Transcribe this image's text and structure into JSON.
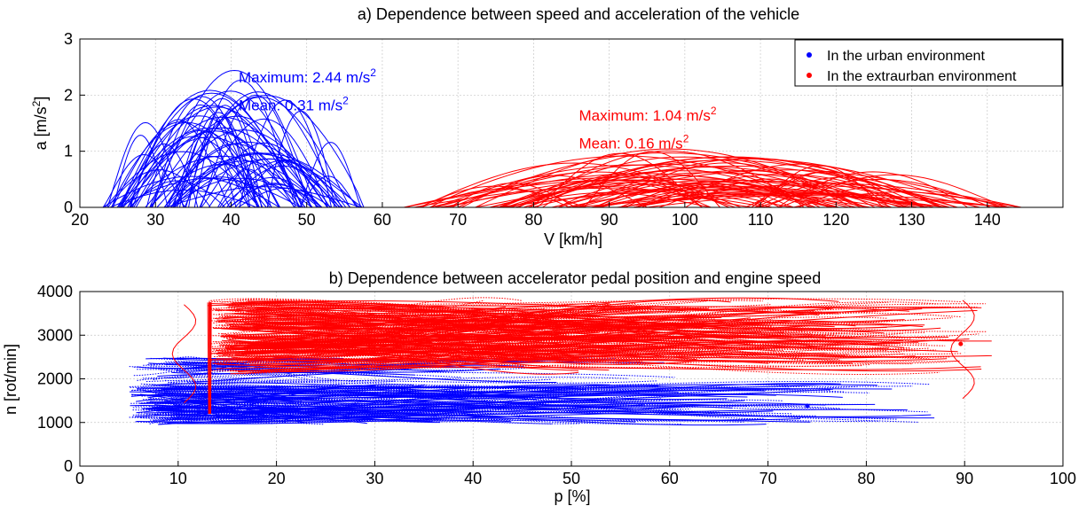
{
  "colors": {
    "urban": "#0000ff",
    "extraurban": "#ff0000",
    "axis": "#000000",
    "grid": "#c8c8c8"
  },
  "chart_data": [
    {
      "type": "line",
      "title": "a) Dependence between speed and acceleration of the vehicle",
      "xlabel": "V [km/h]",
      "ylabel": "a [m/s2]",
      "ylabel_main": "a [m/s",
      "ylabel_sup": "2",
      "ylabel_end": "]",
      "xlim": [
        20,
        150
      ],
      "ylim": [
        0,
        3
      ],
      "xticks": [
        20,
        30,
        40,
        50,
        60,
        70,
        80,
        90,
        100,
        110,
        120,
        130,
        140
      ],
      "yticks": [
        0,
        1,
        2,
        3
      ],
      "grid": true,
      "legend_position": "top-right",
      "series": [
        {
          "name": "In the urban environment",
          "color": "#0000ff",
          "v_range": [
            23,
            58
          ],
          "a_max": 2.44,
          "a_mean": 0.31,
          "peak_speed": 40
        },
        {
          "name": "In the extraurban environment",
          "color": "#ff0000",
          "v_range": [
            62,
            145
          ],
          "a_max": 1.04,
          "a_mean": 0.16,
          "peak_speed": 97
        }
      ],
      "annotations": [
        {
          "series": 0,
          "label": "Maximum: 2.44 m/s",
          "sup": "2",
          "x": 41,
          "y": 2.23
        },
        {
          "series": 0,
          "label": "Mean: 0.31 m/s",
          "sup": "2",
          "x": 41,
          "y": 1.73
        },
        {
          "series": 1,
          "label": "Maximum: 1.04 m/s",
          "sup": "2",
          "x": 86,
          "y": 1.55
        },
        {
          "series": 1,
          "label": "Mean: 0.16 m/s",
          "sup": "2",
          "x": 86,
          "y": 1.05
        }
      ]
    },
    {
      "type": "scatter",
      "title": "b) Dependence between accelerator pedal position and engine speed",
      "xlabel": "p [%]",
      "ylabel": "n [rot/min]",
      "xlim": [
        0,
        100
      ],
      "ylim": [
        0,
        4000
      ],
      "xticks": [
        0,
        10,
        20,
        30,
        40,
        50,
        60,
        70,
        80,
        90,
        100
      ],
      "yticks": [
        0,
        1000,
        2000,
        3000,
        4000
      ],
      "grid": true,
      "series": [
        {
          "name": "In the urban environment",
          "color": "#0000ff",
          "p_range": [
            5,
            87
          ],
          "n_range": [
            950,
            2500
          ]
        },
        {
          "name": "In the extraurban environment",
          "color": "#ff0000",
          "p_range": [
            10,
            98
          ],
          "n_range": [
            1200,
            3800
          ]
        }
      ]
    }
  ]
}
